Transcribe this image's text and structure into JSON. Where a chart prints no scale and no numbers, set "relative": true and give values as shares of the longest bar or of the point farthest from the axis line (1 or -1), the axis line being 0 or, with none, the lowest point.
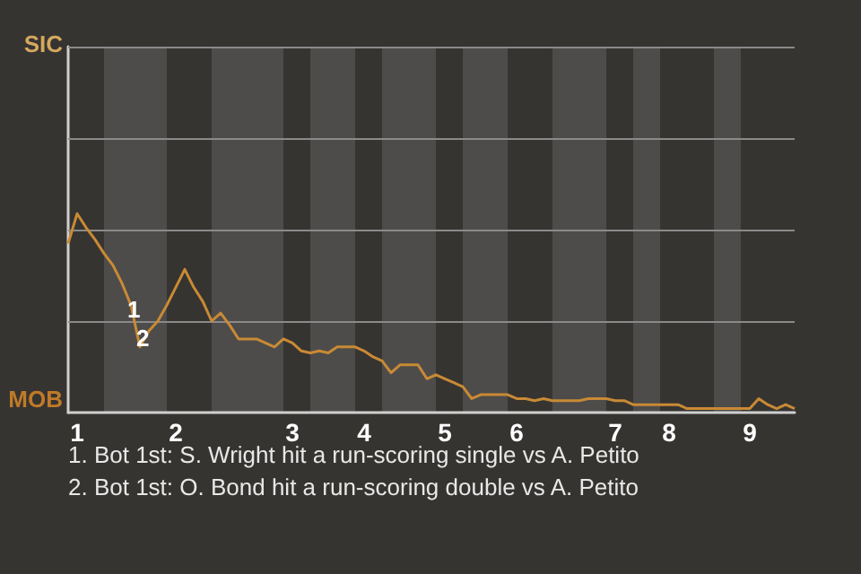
{
  "chart_data": {
    "type": "line",
    "relative": true,
    "categories": [
      null,
      "1",
      null,
      null,
      null,
      null,
      null,
      null,
      null,
      null,
      null,
      null,
      "2",
      null,
      null,
      null,
      null,
      null,
      null,
      null,
      null,
      null,
      null,
      null,
      null,
      "3",
      null,
      null,
      null,
      null,
      null,
      null,
      null,
      "4",
      null,
      null,
      null,
      null,
      null,
      null,
      null,
      null,
      "5",
      null,
      null,
      null,
      null,
      null,
      null,
      null,
      "6",
      null,
      null,
      null,
      null,
      null,
      null,
      null,
      null,
      null,
      null,
      "7",
      null,
      null,
      null,
      null,
      null,
      "8",
      null,
      null,
      null,
      null,
      null,
      null,
      null,
      null,
      "9",
      null,
      null,
      null,
      null,
      null
    ],
    "series": [
      {
        "color": "#c98a35",
        "values": [
          0.85,
          1,
          0.93,
          0.87,
          0.8,
          0.74,
          0.65,
          0.54,
          0.33,
          0.41,
          0.46,
          0.54,
          0.63,
          0.72,
          0.63,
          0.56,
          0.46,
          0.5,
          0.44,
          0.37,
          0.37,
          0.37,
          0.35,
          0.33,
          0.37,
          0.35,
          0.31,
          0.3,
          0.31,
          0.3,
          0.33,
          0.33,
          0.33,
          0.31,
          0.28,
          0.26,
          0.2,
          0.24,
          0.24,
          0.24,
          0.17,
          0.19,
          0.17,
          0.15,
          0.13,
          0.07,
          0.09,
          0.09,
          0.09,
          0.09,
          0.07,
          0.07,
          0.06,
          0.07,
          0.06,
          0.06,
          0.06,
          0.06,
          0.07,
          0.07,
          0.07,
          0.06,
          0.06,
          0.04,
          0.04,
          0.04,
          0.04,
          0.04,
          0.04,
          0.02,
          0.02,
          0.02,
          0.02,
          0.02,
          0.02,
          0.02,
          0.02,
          0.07,
          0.04,
          0.02,
          0.04,
          0.02
        ]
      }
    ],
    "marker": "none",
    "ref_lines": [
      {
        "axis": "y",
        "value": 0.46,
        "color": "#8a8a8a",
        "line_style": "solid"
      },
      {
        "axis": "y",
        "value": 0.92,
        "color": "#8a8a8a",
        "line_style": "solid"
      },
      {
        "axis": "y",
        "value": 1.38,
        "color": "#8a8a8a",
        "line_style": "solid"
      },
      {
        "axis": "y",
        "value": 1.84,
        "color": "#8a8a8a",
        "line_style": "solid"
      }
    ],
    "annotations": [
      "SIC",
      "MOB",
      "1",
      "2",
      "1. Bot 1st: S. Wright hit a run-scoring single vs A. Petito",
      "2. Bot 1st: O. Bond hit a run-scoring double vs A. Petito"
    ]
  }
}
